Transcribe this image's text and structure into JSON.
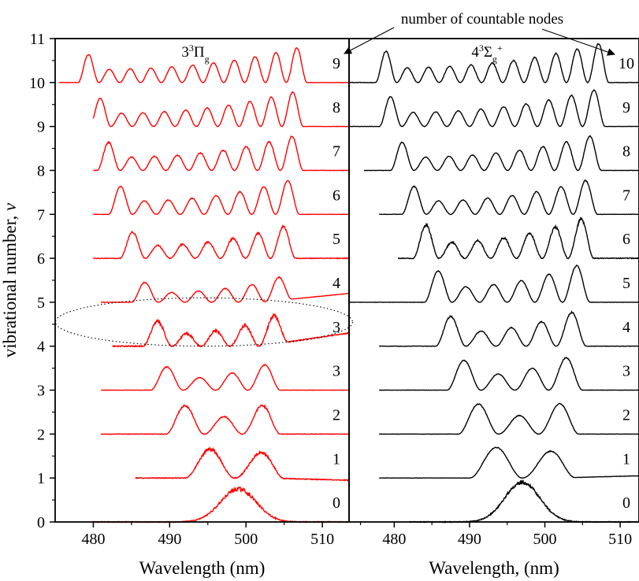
{
  "chart_data": [
    {
      "type": "line",
      "panel": "left",
      "title": "3³Π",
      "title_parts": {
        "lead": "3",
        "sup": "3",
        "symbol": "Π",
        "sub": "g"
      },
      "xlabel": "Wavelength (nm)",
      "ylabel": "vibrational number, v",
      "ylabel_parts": {
        "text": "vibrational number, ",
        "var": "v"
      },
      "xlim": [
        475,
        513.5
      ],
      "ylim": [
        0,
        11
      ],
      "xticks": [
        480,
        490,
        500,
        510
      ],
      "yticks": [
        0,
        1,
        2,
        3,
        4,
        5,
        6,
        7,
        8,
        9,
        10,
        11
      ],
      "line_color": "#ff0000",
      "series": [
        {
          "v": 0,
          "label": "0",
          "start": 480,
          "end": 513.5,
          "center": 499,
          "width": 6,
          "amp": 0.75,
          "nodes": 0,
          "noise": 0.07,
          "endLevel": 0
        },
        {
          "v": 1,
          "label": "1",
          "start": 485.5,
          "end": 513.5,
          "center": 498.5,
          "width": 6.5,
          "amp": 0.85,
          "nodes": 1,
          "noise": 0.06,
          "endLevel": 0.95
        },
        {
          "v": 2,
          "label": "2",
          "start": 481,
          "end": 513.5,
          "center": 497,
          "width": 7.5,
          "amp": 0.85,
          "nodes": 2,
          "noise": 0.04,
          "endLevel": 2
        },
        {
          "v": 3,
          "label": "3",
          "start": 481,
          "end": 513.5,
          "center": 496,
          "width": 8.5,
          "amp": 0.7,
          "nodes": 3,
          "noise": 0.02,
          "endLevel": 3
        },
        {
          "v": 4,
          "label": "3",
          "start": 482.5,
          "end": 513.5,
          "center": 496,
          "width": 9.5,
          "amp": 0.75,
          "nodes": 4,
          "noise": 0.08,
          "endLevel": 4.3
        },
        {
          "v": 5,
          "label": "4",
          "start": 481,
          "end": 513.5,
          "center": 495.5,
          "width": 10.5,
          "amp": 0.6,
          "nodes": 5,
          "noise": 0.02,
          "endLevel": 5.2
        },
        {
          "v": 6,
          "label": "5",
          "start": 480,
          "end": 513.5,
          "center": 495,
          "width": 11.5,
          "amp": 0.8,
          "nodes": 6,
          "noise": 0.05,
          "endLevel": 6
        },
        {
          "v": 7,
          "label": "6",
          "start": 480,
          "end": 513.5,
          "center": 494.5,
          "width": 12.5,
          "amp": 0.85,
          "nodes": 7,
          "noise": 0.02,
          "endLevel": 7
        },
        {
          "v": 8,
          "label": "7",
          "start": 480,
          "end": 513.5,
          "center": 494,
          "width": 13.5,
          "amp": 0.85,
          "nodes": 8,
          "noise": 0.03,
          "endLevel": 8
        },
        {
          "v": 9,
          "label": "8",
          "start": 480,
          "end": 513.5,
          "center": 493.5,
          "width": 14,
          "amp": 0.85,
          "nodes": 9,
          "noise": 0.02,
          "endLevel": 9
        },
        {
          "v": 10,
          "label": "9",
          "start": 475.5,
          "end": 513.5,
          "center": 493,
          "width": 15,
          "amp": 0.85,
          "nodes": 10,
          "noise": 0.02,
          "endLevel": 10
        }
      ]
    },
    {
      "type": "line",
      "panel": "right",
      "title": "4³Σ⁺",
      "title_parts": {
        "lead": "4",
        "sup": "3",
        "symbol": "Σ",
        "sub": "g",
        "sup2": "+"
      },
      "xlabel": "Wavelength, (nm)",
      "xlim": [
        474,
        512.5
      ],
      "ylim": [
        0,
        11
      ],
      "xticks": [
        480,
        490,
        500,
        510
      ],
      "line_color": "#000000",
      "series": [
        {
          "v": 0,
          "label": "0",
          "start": 482,
          "end": 512.5,
          "center": 497,
          "width": 6,
          "amp": 0.9,
          "nodes": 0,
          "noise": 0.06,
          "endLevel": 0
        },
        {
          "v": 1,
          "label": "1",
          "start": 478,
          "end": 512.5,
          "center": 497,
          "width": 7,
          "amp": 0.9,
          "nodes": 1,
          "noise": 0.02,
          "endLevel": 1.05
        },
        {
          "v": 2,
          "label": "2",
          "start": 478,
          "end": 512.5,
          "center": 496.5,
          "width": 8,
          "amp": 0.9,
          "nodes": 2,
          "noise": 0.02,
          "endLevel": 2
        },
        {
          "v": 3,
          "label": "3",
          "start": 478,
          "end": 512.5,
          "center": 496,
          "width": 9,
          "amp": 0.9,
          "nodes": 3,
          "noise": 0.02,
          "endLevel": 3
        },
        {
          "v": 4,
          "label": "4",
          "start": 478,
          "end": 512.5,
          "center": 495.5,
          "width": 10,
          "amp": 0.9,
          "nodes": 4,
          "noise": 0.03,
          "endLevel": 4
        },
        {
          "v": 5,
          "label": "5",
          "start": 474,
          "end": 512.5,
          "center": 495,
          "width": 11,
          "amp": 0.95,
          "nodes": 5,
          "noise": 0.02,
          "endLevel": 5
        },
        {
          "v": 6,
          "label": "6",
          "start": 480.5,
          "end": 512.5,
          "center": 494.5,
          "width": 12,
          "amp": 1.0,
          "nodes": 6,
          "noise": 0.06,
          "endLevel": 6
        },
        {
          "v": 7,
          "label": "7",
          "start": 478,
          "end": 512.5,
          "center": 494,
          "width": 13,
          "amp": 0.85,
          "nodes": 7,
          "noise": 0.02,
          "endLevel": 7
        },
        {
          "v": 8,
          "label": "8",
          "start": 476,
          "end": 512.5,
          "center": 493.5,
          "width": 14,
          "amp": 0.85,
          "nodes": 8,
          "noise": 0.02,
          "endLevel": 8
        },
        {
          "v": 9,
          "label": "9",
          "start": 474,
          "end": 512.5,
          "center": 493,
          "width": 15,
          "amp": 0.9,
          "nodes": 9,
          "noise": 0.02,
          "endLevel": 9
        },
        {
          "v": 10,
          "label": "10",
          "start": 474,
          "end": 512.5,
          "center": 493,
          "width": 15.5,
          "amp": 0.95,
          "nodes": 10,
          "noise": 0.03,
          "endLevel": 10
        }
      ]
    }
  ],
  "annotation": {
    "text": "number of countable nodes",
    "arrow_targets": [
      "left-panel-node-label-column",
      "right-panel-node-label-column"
    ]
  },
  "highlight": {
    "shape": "dotted-ellipse",
    "panel": "left",
    "around_v": 4
  }
}
